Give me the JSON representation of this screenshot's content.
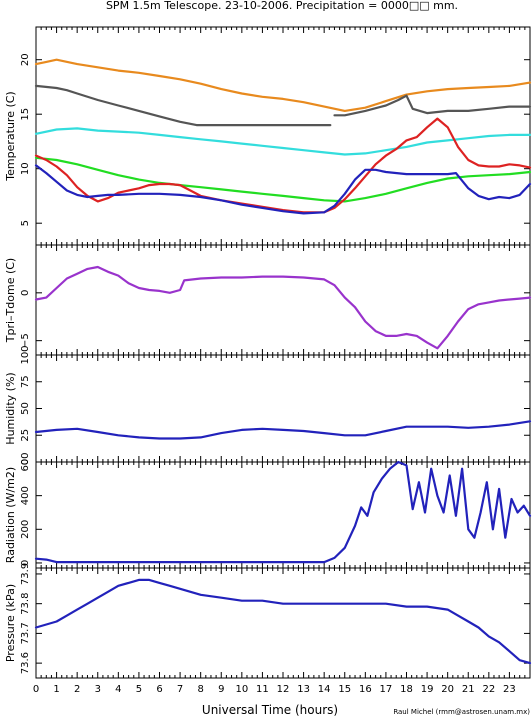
{
  "chart_data": {
    "type": "line",
    "title": "SPM 1.5m Telescope. 23-10-2006. Precipitation = 0000□□ mm.",
    "xlabel": "Universal Time (hours)",
    "xlim": [
      0,
      24
    ],
    "x_ticks": [
      "0",
      "1",
      "2",
      "3",
      "4",
      "5",
      "6",
      "7",
      "8",
      "9",
      "10",
      "11",
      "12",
      "13",
      "14",
      "15",
      "16",
      "17",
      "18",
      "19",
      "20",
      "21",
      "22",
      "23"
    ],
    "credit": "Raul Michel (rmm@astrosen.unam.mx)",
    "panels": [
      {
        "id": "temperature",
        "ylabel": "Temperature (C)",
        "ylim": [
          3,
          23
        ],
        "y_ticks": [
          "5",
          "10",
          "15",
          "20"
        ],
        "series": [
          {
            "color": "#e88a1e",
            "x": [
              0,
              0.5,
              1,
              2,
              3,
              4,
              5,
              6,
              7,
              8,
              9,
              10,
              11,
              12,
              13,
              14,
              15,
              16,
              17,
              18,
              19,
              20,
              21,
              22,
              23,
              24
            ],
            "y": [
              19.6,
              19.8,
              20.0,
              19.6,
              19.3,
              19.0,
              18.8,
              18.5,
              18.2,
              17.8,
              17.3,
              16.9,
              16.6,
              16.4,
              16.1,
              15.7,
              15.3,
              15.6,
              16.2,
              16.8,
              17.1,
              17.3,
              17.4,
              17.5,
              17.6,
              17.9
            ]
          },
          {
            "color": "#555555",
            "x": [
              0,
              1,
              1.5,
              2,
              3,
              4,
              5,
              6,
              7,
              7.8,
              8,
              9,
              10,
              11,
              12,
              13,
              14.3
            ],
            "y": [
              17.6,
              17.4,
              17.2,
              16.9,
              16.3,
              15.8,
              15.3,
              14.8,
              14.3,
              14.0,
              14.0,
              14.0,
              14.0,
              14.0,
              14.0,
              14.0,
              14.0
            ]
          },
          {
            "color": "#555555",
            "x": [
              14.5,
              15,
              16,
              17,
              17.6,
              18,
              18.3,
              19,
              20,
              21,
              22,
              23,
              24
            ],
            "y": [
              14.9,
              14.9,
              15.3,
              15.8,
              16.3,
              16.7,
              15.5,
              15.1,
              15.3,
              15.3,
              15.5,
              15.7,
              15.7
            ]
          },
          {
            "color": "#33dddd",
            "x": [
              0,
              1,
              2,
              3,
              4,
              5,
              6,
              7,
              8,
              9,
              10,
              11,
              12,
              13,
              14,
              15,
              16,
              17,
              18,
              19,
              20,
              21,
              22,
              23,
              24
            ],
            "y": [
              13.2,
              13.6,
              13.7,
              13.5,
              13.4,
              13.3,
              13.1,
              12.9,
              12.7,
              12.5,
              12.3,
              12.1,
              11.9,
              11.7,
              11.5,
              11.3,
              11.4,
              11.7,
              12.0,
              12.4,
              12.6,
              12.8,
              13.0,
              13.1,
              13.1
            ]
          },
          {
            "color": "#22dd22",
            "x": [
              0,
              1,
              2,
              3,
              4,
              5,
              6,
              7,
              8,
              9,
              10,
              11,
              12,
              13,
              14,
              15,
              16,
              17,
              18,
              19,
              20,
              21,
              22,
              23,
              24
            ],
            "y": [
              11.0,
              10.8,
              10.4,
              9.9,
              9.4,
              9.0,
              8.7,
              8.5,
              8.3,
              8.1,
              7.9,
              7.7,
              7.5,
              7.3,
              7.1,
              7.0,
              7.3,
              7.7,
              8.2,
              8.7,
              9.1,
              9.3,
              9.4,
              9.5,
              9.7
            ]
          },
          {
            "color": "#dd2222",
            "x": [
              0,
              0.5,
              1,
              1.5,
              2,
              2.5,
              3,
              3.5,
              4,
              4.5,
              5,
              5.5,
              6,
              6.5,
              7,
              7.5,
              8,
              9,
              10,
              11,
              12,
              13,
              14,
              14.5,
              15,
              15.5,
              16,
              16.5,
              17,
              17.5,
              18,
              18.5,
              19,
              19.5,
              20,
              20.5,
              21,
              21.5,
              22,
              22.5,
              23,
              23.5,
              24
            ],
            "y": [
              11.2,
              10.8,
              10.2,
              9.4,
              8.3,
              7.5,
              7.0,
              7.3,
              7.8,
              8.0,
              8.2,
              8.5,
              8.6,
              8.6,
              8.5,
              8.0,
              7.5,
              7.1,
              6.8,
              6.5,
              6.2,
              6.0,
              6.0,
              6.4,
              7.2,
              8.2,
              9.3,
              10.4,
              11.2,
              11.8,
              12.6,
              12.9,
              13.8,
              14.6,
              13.8,
              12.0,
              10.8,
              10.3,
              10.2,
              10.2,
              10.4,
              10.3,
              10.1
            ]
          },
          {
            "color": "#2222bb",
            "x": [
              0,
              0.5,
              1,
              1.5,
              2,
              2.5,
              3,
              3.5,
              4,
              5,
              6,
              7,
              8,
              9,
              10,
              11,
              12,
              13,
              14,
              14.5,
              15,
              15.5,
              16,
              16.5,
              17,
              18,
              19,
              20,
              20.4,
              21,
              21.5,
              22,
              22.5,
              23,
              23.5,
              24
            ],
            "y": [
              10.3,
              9.6,
              8.8,
              8.0,
              7.6,
              7.4,
              7.5,
              7.6,
              7.6,
              7.7,
              7.7,
              7.6,
              7.4,
              7.1,
              6.7,
              6.4,
              6.1,
              5.9,
              6.0,
              6.6,
              7.7,
              9.0,
              9.9,
              9.9,
              9.7,
              9.5,
              9.5,
              9.5,
              9.6,
              8.2,
              7.5,
              7.2,
              7.4,
              7.3,
              7.6,
              8.6
            ]
          }
        ]
      },
      {
        "id": "tpri-tdome",
        "ylabel": "Tpri–Tdome (C)",
        "ylim": [
          -6.5,
          5
        ],
        "y_ticks": [
          "−5",
          "0"
        ],
        "series": [
          {
            "color": "#9933cc",
            "x": [
              0,
              0.5,
              1,
              1.5,
              2,
              2.5,
              3,
              3.5,
              4,
              4.5,
              5,
              5.5,
              6,
              6.5,
              7,
              7.2,
              8,
              9,
              10,
              11,
              12,
              13,
              14,
              14.5,
              15,
              15.5,
              16,
              16.5,
              17,
              17.5,
              18,
              18.5,
              19,
              19.5,
              20,
              20.5,
              21,
              21.5,
              22,
              22.5,
              23,
              23.5,
              24
            ],
            "y": [
              -0.7,
              -0.5,
              0.5,
              1.5,
              2.0,
              2.5,
              2.7,
              2.2,
              1.8,
              1.0,
              0.5,
              0.3,
              0.2,
              0.0,
              0.3,
              1.3,
              1.5,
              1.6,
              1.6,
              1.7,
              1.7,
              1.6,
              1.4,
              0.8,
              -0.5,
              -1.5,
              -3.0,
              -4.0,
              -4.5,
              -4.5,
              -4.3,
              -4.5,
              -5.2,
              -5.8,
              -4.5,
              -3.0,
              -1.7,
              -1.2,
              -1.0,
              -0.8,
              -0.7,
              -0.6,
              -0.5
            ]
          }
        ]
      },
      {
        "id": "humidity",
        "ylabel": "Humidity (%)",
        "ylim": [
          0,
          100
        ],
        "y_ticks": [
          "0",
          "25",
          "50",
          "75",
          "100"
        ],
        "series": [
          {
            "color": "#2222bb",
            "x": [
              0,
              1,
              2,
              3,
              4,
              5,
              6,
              7,
              8,
              9,
              10,
              11,
              12,
              13,
              14,
              15,
              16,
              17,
              18,
              19,
              20,
              21,
              22,
              23,
              24
            ],
            "y": [
              28,
              30,
              31,
              28,
              25,
              23,
              22,
              22,
              23,
              27,
              30,
              31,
              30,
              29,
              27,
              25,
              25,
              29,
              33,
              33,
              33,
              32,
              33,
              35,
              38
            ]
          }
        ]
      },
      {
        "id": "radiation",
        "ylabel": "Radiation (W/m2)",
        "ylim": [
          -30,
          600
        ],
        "y_ticks": [
          "0",
          "200",
          "400",
          "600"
        ],
        "series": [
          {
            "color": "#2222bb",
            "x": [
              0,
              0.5,
              1,
              2,
              3,
              4,
              5,
              6,
              7,
              8,
              9,
              10,
              11,
              12,
              13,
              14,
              14.5,
              15,
              15.5,
              15.8,
              16.1,
              16.4,
              16.8,
              17.2,
              17.6,
              18,
              18.3,
              18.6,
              18.9,
              19.2,
              19.5,
              19.8,
              20.1,
              20.4,
              20.7,
              21,
              21.3,
              21.6,
              21.9,
              22.2,
              22.5,
              22.8,
              23.1,
              23.4,
              23.7,
              24
            ],
            "y": [
              25,
              20,
              5,
              5,
              5,
              5,
              5,
              5,
              5,
              5,
              5,
              5,
              5,
              5,
              5,
              5,
              30,
              90,
              220,
              330,
              280,
              420,
              500,
              560,
              600,
              580,
              320,
              480,
              300,
              560,
              400,
              300,
              520,
              280,
              560,
              200,
              150,
              300,
              480,
              200,
              440,
              150,
              380,
              300,
              340,
              280
            ]
          }
        ]
      },
      {
        "id": "pressure",
        "ylabel": "Pressure (kPa)",
        "ylim": [
          73.55,
          73.92
        ],
        "y_ticks": [
          "73.6",
          "73.7",
          "73.8",
          "73.9"
        ],
        "series": [
          {
            "color": "#2222bb",
            "x": [
              0,
              0.5,
              1,
              1.5,
              2,
              2.5,
              3,
              3.5,
              4,
              4.5,
              5,
              5.5,
              6,
              6.5,
              7,
              7.5,
              8,
              9,
              10,
              11,
              12,
              13,
              14,
              15,
              16,
              17,
              18,
              19,
              20,
              20.5,
              21,
              21.5,
              22,
              22.5,
              23,
              23.5,
              24
            ],
            "y": [
              73.72,
              73.73,
              73.74,
              73.76,
              73.78,
              73.8,
              73.82,
              73.84,
              73.86,
              73.87,
              73.88,
              73.88,
              73.87,
              73.86,
              73.85,
              73.84,
              73.83,
              73.82,
              73.81,
              73.81,
              73.8,
              73.8,
              73.8,
              73.8,
              73.8,
              73.8,
              73.79,
              73.79,
              73.78,
              73.76,
              73.74,
              73.72,
              73.69,
              73.67,
              73.64,
              73.61,
              73.6
            ]
          }
        ]
      }
    ]
  }
}
